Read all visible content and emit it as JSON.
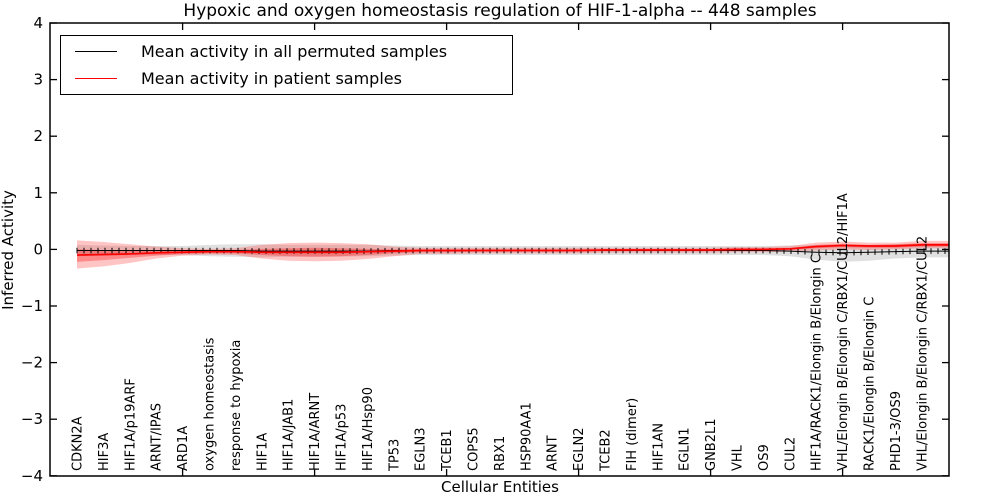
{
  "chart_data": {
    "type": "line",
    "title": "Hypoxic and oxygen homeostasis regulation of HIF-1-alpha -- 448 samples",
    "xlabel": "Cellular Entities",
    "ylabel": "Inferred Activity",
    "ylim": [
      -4,
      4
    ],
    "yticks": [
      4,
      3,
      2,
      1,
      0,
      -1,
      -2,
      -3,
      -4
    ],
    "ytick_labels": [
      "4",
      "3",
      "2",
      "1",
      "0",
      "−1",
      "−2",
      "−3",
      "−4"
    ],
    "grid": false,
    "legend_position": "upper left",
    "categories": [
      "CDKN2A",
      "HIF3A",
      "HIF1A/p19ARF",
      "ARNT/IPAS",
      "ARD1A",
      "oxygen homeostasis",
      "response to hypoxia",
      "HIF1A",
      "HIF1A/JAB1",
      "HIF1A/ARNT",
      "HIF1A/p53",
      "HIF1A/Hsp90",
      "TP53",
      "EGLN3",
      "TCEB1",
      "COPS5",
      "RBX1",
      "HSP90AA1",
      "ARNT",
      "EGLN2",
      "TCEB2",
      "FIH (dimer)",
      "HIF1AN",
      "EGLN1",
      "GNB2L1",
      "VHL",
      "OS9",
      "CUL2",
      "HIF1A/RACK1/Elongin B/Elongin C",
      "VHL/Elongin B/Elongin C/RBX1/CUL2/HIF1A",
      "RACK1/Elongin B/Elongin C",
      "PHD1-3/OS9",
      "VHL/Elongin B/Elongin C/RBX1/CUL2"
    ],
    "series": [
      {
        "name": "Mean activity in all permuted samples",
        "color": "#000000",
        "band_color": "rgba(0,0,0,0.12)",
        "values": [
          -0.02,
          -0.02,
          -0.02,
          -0.02,
          -0.02,
          -0.02,
          -0.02,
          -0.03,
          -0.03,
          -0.03,
          -0.03,
          -0.03,
          -0.02,
          -0.02,
          -0.02,
          -0.02,
          -0.02,
          -0.02,
          -0.02,
          -0.02,
          -0.02,
          -0.02,
          -0.02,
          -0.02,
          -0.02,
          -0.02,
          -0.02,
          -0.03,
          -0.05,
          -0.06,
          -0.05,
          -0.04,
          -0.03
        ],
        "band_upper": [
          0.08,
          0.07,
          0.06,
          0.06,
          0.06,
          0.08,
          0.09,
          0.09,
          0.08,
          0.08,
          0.08,
          0.08,
          0.07,
          0.06,
          0.06,
          0.06,
          0.06,
          0.06,
          0.06,
          0.06,
          0.06,
          0.06,
          0.06,
          0.06,
          0.06,
          0.06,
          0.06,
          0.07,
          0.08,
          0.08,
          0.08,
          0.09,
          0.1
        ],
        "band_lower": [
          -0.12,
          -0.11,
          -0.1,
          -0.1,
          -0.1,
          -0.12,
          -0.13,
          -0.14,
          -0.13,
          -0.13,
          -0.13,
          -0.12,
          -0.11,
          -0.1,
          -0.1,
          -0.1,
          -0.1,
          -0.1,
          -0.1,
          -0.1,
          -0.1,
          -0.1,
          -0.1,
          -0.1,
          -0.1,
          -0.1,
          -0.1,
          -0.12,
          -0.18,
          -0.22,
          -0.2,
          -0.16,
          -0.14
        ]
      },
      {
        "name": "Mean activity in patient samples",
        "color": "#ff0000",
        "band_color": "rgba(255,60,60,0.30)",
        "band_inner_color": "rgba(255,0,0,0.30)",
        "values": [
          -0.1,
          -0.09,
          -0.08,
          -0.06,
          -0.05,
          -0.04,
          -0.04,
          -0.05,
          -0.05,
          -0.05,
          -0.05,
          -0.04,
          -0.03,
          -0.02,
          -0.02,
          -0.02,
          -0.02,
          -0.02,
          -0.02,
          -0.02,
          -0.01,
          -0.01,
          -0.01,
          -0.01,
          -0.01,
          0.0,
          0.0,
          0.01,
          0.05,
          0.07,
          0.06,
          0.06,
          0.08
        ],
        "band_upper": [
          0.16,
          0.13,
          0.09,
          0.05,
          0.02,
          0.01,
          0.02,
          0.08,
          0.11,
          0.12,
          0.11,
          0.09,
          0.05,
          0.03,
          0.03,
          0.03,
          0.03,
          0.03,
          0.03,
          0.03,
          0.03,
          0.03,
          0.03,
          0.03,
          0.03,
          0.04,
          0.04,
          0.06,
          0.12,
          0.14,
          0.12,
          0.12,
          0.15
        ],
        "band_lower": [
          -0.34,
          -0.3,
          -0.24,
          -0.16,
          -0.11,
          -0.09,
          -0.1,
          -0.16,
          -0.2,
          -0.21,
          -0.2,
          -0.17,
          -0.12,
          -0.08,
          -0.08,
          -0.07,
          -0.07,
          -0.07,
          -0.07,
          -0.07,
          -0.06,
          -0.06,
          -0.06,
          -0.06,
          -0.06,
          -0.05,
          -0.05,
          -0.04,
          -0.02,
          0.0,
          -0.01,
          0.0,
          0.02
        ],
        "band_inner_upper": [
          0.0,
          -0.01,
          -0.02,
          -0.02,
          -0.02,
          -0.01,
          -0.01,
          0.01,
          0.02,
          0.03,
          0.02,
          0.01,
          0.0,
          0.0,
          0.0,
          0.0,
          0.0,
          0.0,
          0.0,
          0.0,
          0.0,
          0.0,
          0.0,
          0.0,
          0.0,
          0.01,
          0.01,
          0.02,
          0.08,
          0.1,
          0.08,
          0.09,
          0.11
        ],
        "band_inner_lower": [
          -0.22,
          -0.19,
          -0.15,
          -0.11,
          -0.08,
          -0.07,
          -0.07,
          -0.1,
          -0.12,
          -0.13,
          -0.12,
          -0.1,
          -0.07,
          -0.05,
          -0.05,
          -0.04,
          -0.04,
          -0.04,
          -0.04,
          -0.04,
          -0.03,
          -0.03,
          -0.03,
          -0.03,
          -0.03,
          -0.02,
          -0.02,
          -0.01,
          0.02,
          0.04,
          0.03,
          0.03,
          0.05
        ]
      }
    ],
    "legend": {
      "entries": [
        {
          "label": "Mean activity in all permuted samples",
          "color": "#000000"
        },
        {
          "label": "Mean activity in patient samples",
          "color": "#ff0000"
        }
      ]
    }
  }
}
